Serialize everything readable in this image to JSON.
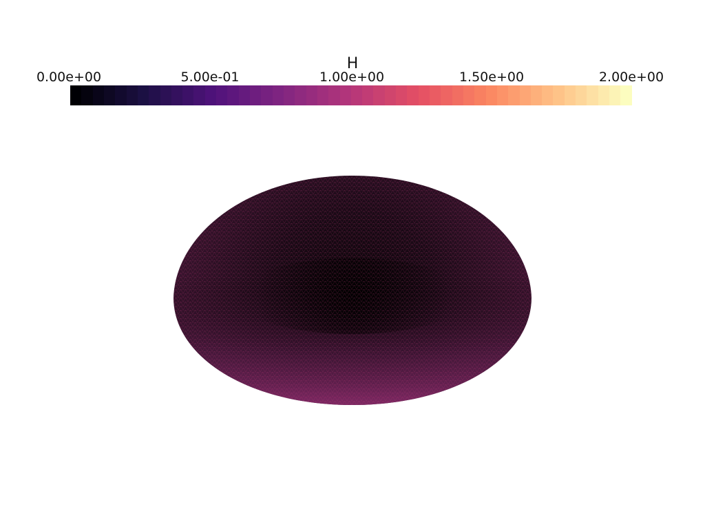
{
  "colorbar": {
    "title": "H",
    "ticks": [
      "0.00e+00",
      "5.00e-01",
      "1.00e+00",
      "1.50e+00",
      "2.00e+00"
    ],
    "range": [
      0,
      2
    ],
    "colormap": "magma",
    "n_bands": 50
  },
  "surface": {
    "shape": "red-blood-cell biconcave disk (wireframe mesh)",
    "colors": {
      "dark": "#120812",
      "rim": "#2a0f22",
      "lower": "#6b2358",
      "mesh_line": "#c13a78"
    }
  }
}
